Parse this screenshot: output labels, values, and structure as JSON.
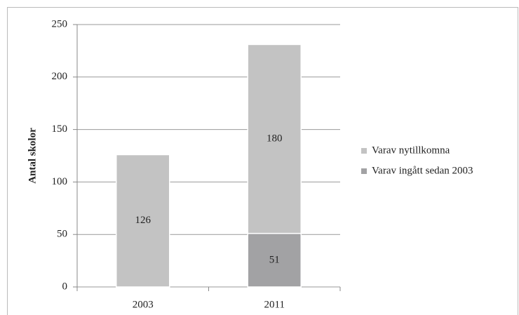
{
  "chart_data": {
    "type": "stacked-bar",
    "categories": [
      "2003",
      "2011"
    ],
    "series": [
      {
        "name": "Varav nytillkomna",
        "color": "#c3c3c3",
        "values": [
          126,
          180
        ]
      },
      {
        "name": "Varav ingått sedan 2003",
        "color": "#a2a2a4",
        "values": [
          null,
          51
        ]
      }
    ],
    "y_label": "Antal skolor",
    "ylim": [
      0,
      250
    ],
    "yticks": [
      0,
      50,
      100,
      150,
      200,
      250
    ],
    "grid": true,
    "legend": "right"
  }
}
